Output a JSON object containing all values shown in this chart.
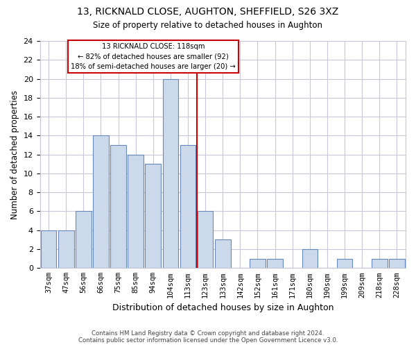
{
  "title": "13, RICKNALD CLOSE, AUGHTON, SHEFFIELD, S26 3XZ",
  "subtitle": "Size of property relative to detached houses in Aughton",
  "xlabel": "Distribution of detached houses by size in Aughton",
  "ylabel": "Number of detached properties",
  "bin_labels": [
    "37sqm",
    "47sqm",
    "56sqm",
    "66sqm",
    "75sqm",
    "85sqm",
    "94sqm",
    "104sqm",
    "113sqm",
    "123sqm",
    "133sqm",
    "142sqm",
    "152sqm",
    "161sqm",
    "171sqm",
    "180sqm",
    "190sqm",
    "199sqm",
    "209sqm",
    "218sqm",
    "228sqm"
  ],
  "bar_heights": [
    4,
    4,
    6,
    14,
    13,
    12,
    11,
    20,
    13,
    6,
    3,
    0,
    1,
    1,
    0,
    2,
    0,
    1,
    0,
    1,
    1
  ],
  "bar_color": "#ccd9ea",
  "bar_edge_color": "#6688bb",
  "property_label": "13 RICKNALD CLOSE: 118sqm",
  "annotation_line1": "← 82% of detached houses are smaller (92)",
  "annotation_line2": "18% of semi-detached houses are larger (20) →",
  "vline_color": "#cc0000",
  "annotation_box_edge": "#cc0000",
  "ylim": [
    0,
    24
  ],
  "yticks": [
    0,
    2,
    4,
    6,
    8,
    10,
    12,
    14,
    16,
    18,
    20,
    22,
    24
  ],
  "footer1": "Contains HM Land Registry data © Crown copyright and database right 2024.",
  "footer2": "Contains public sector information licensed under the Open Government Licence v3.0.",
  "bg_color": "#ffffff",
  "grid_color": "#c8c8d8"
}
